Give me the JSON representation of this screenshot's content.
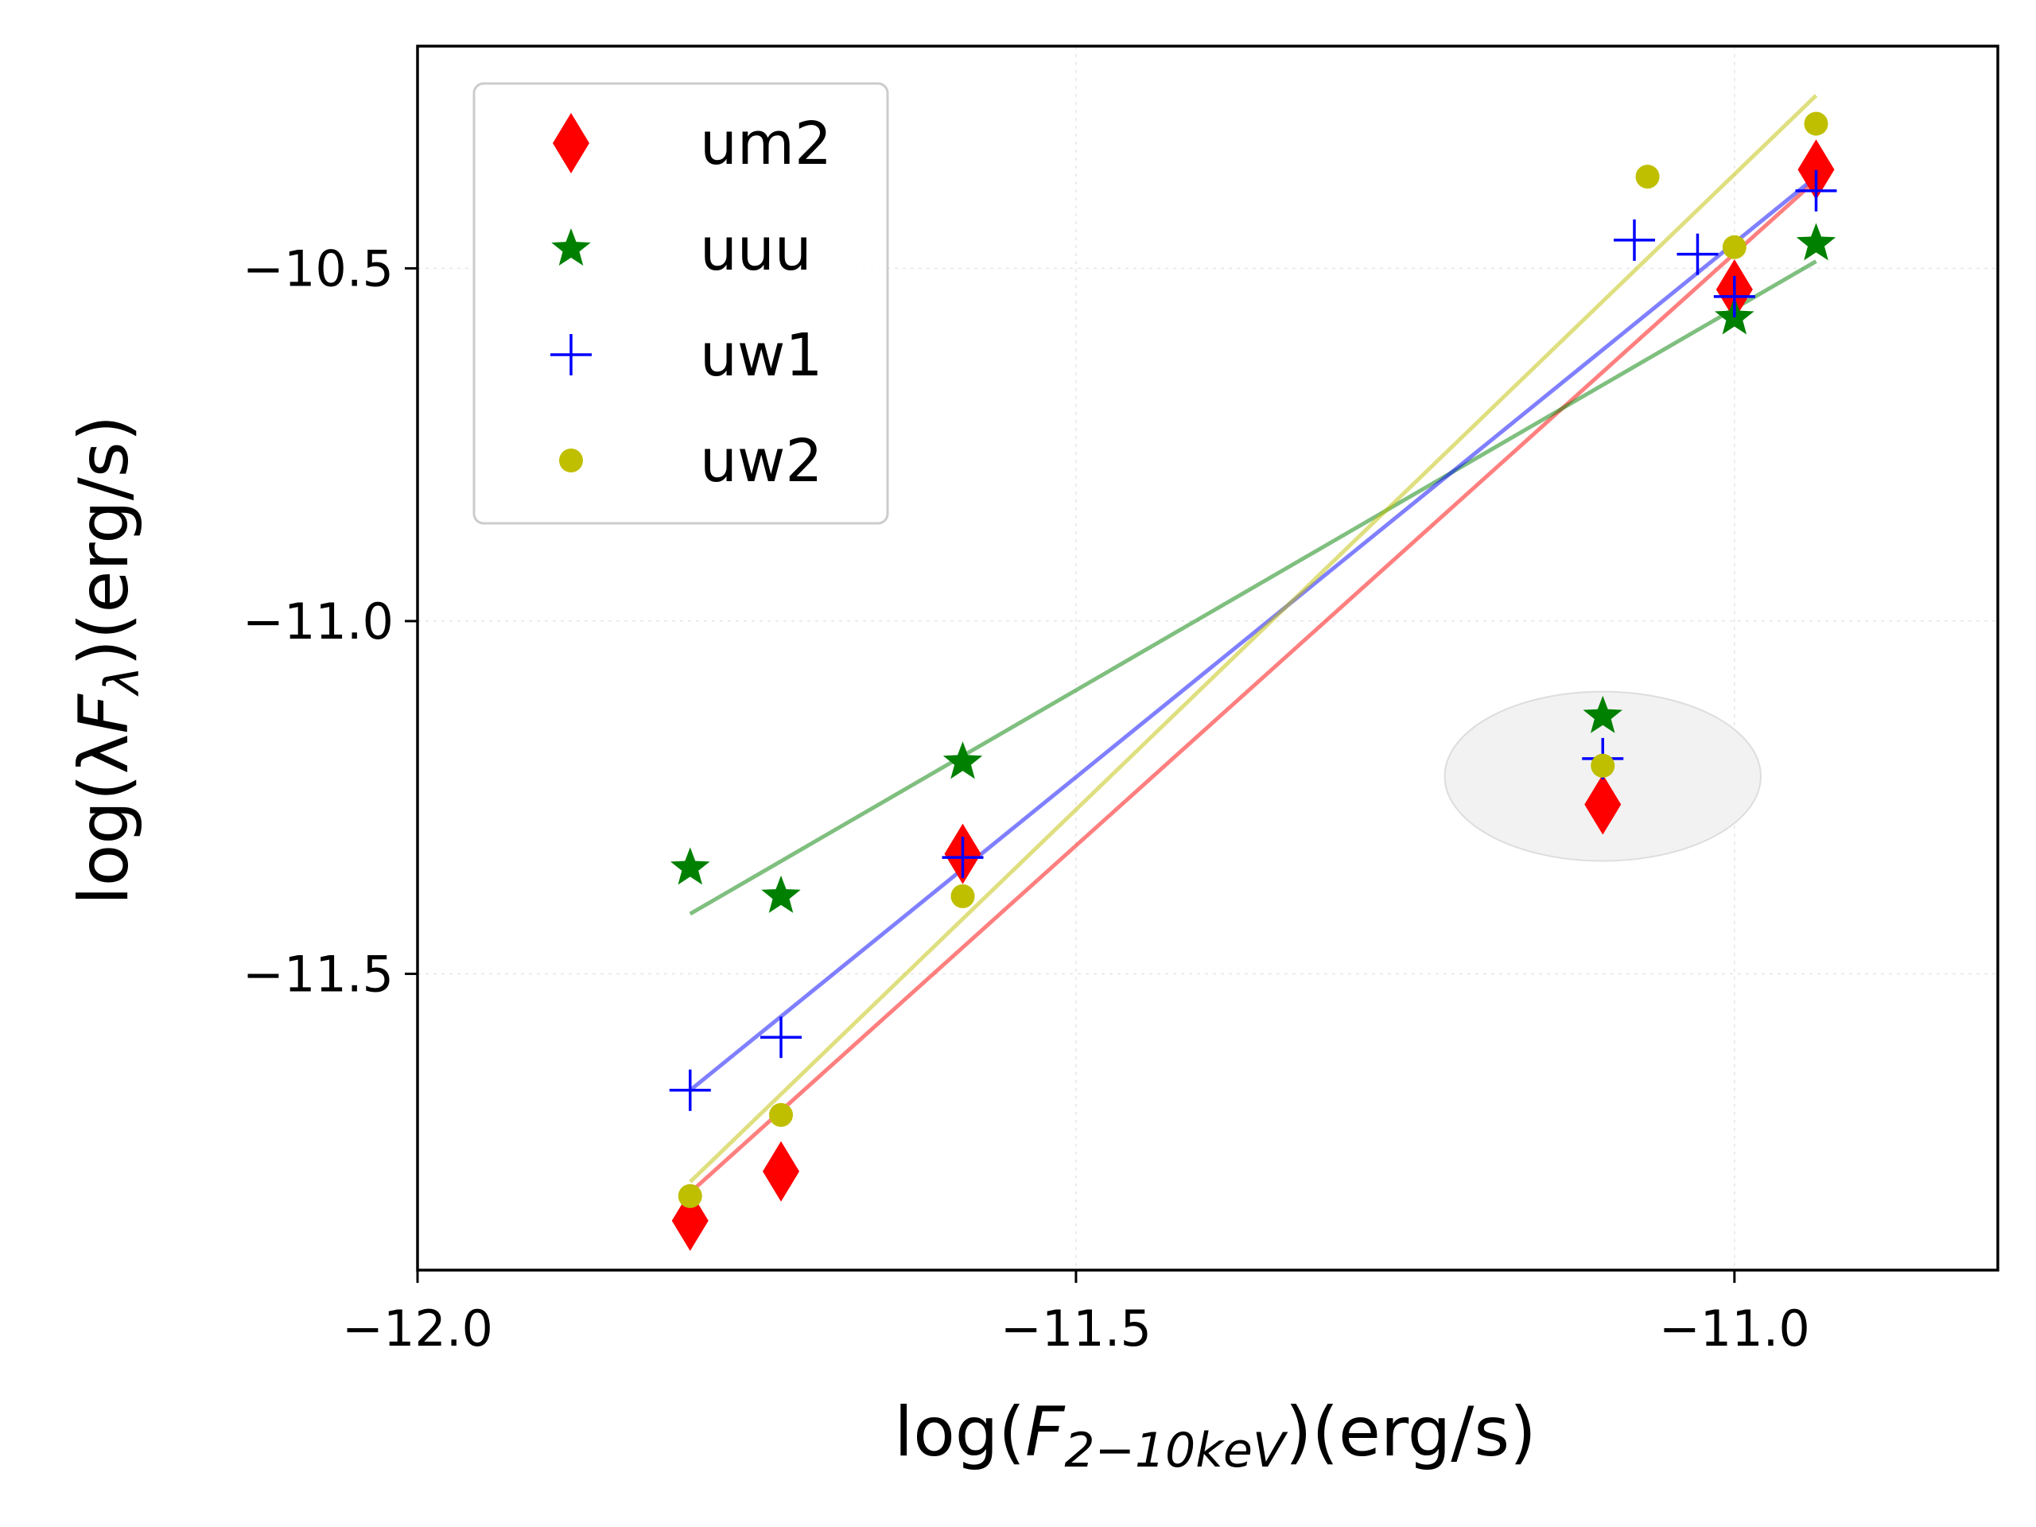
{
  "chart_data": {
    "type": "scatter",
    "xlabel": "log(F_{2−10keV})(erg/s)",
    "ylabel": "log(λF_λ)(erg/s)",
    "xlim": [
      -12.0,
      -10.8
    ],
    "ylim": [
      -11.92,
      -10.185
    ],
    "x_ticks": [
      -12.0,
      -11.5,
      -11.0
    ],
    "x_tick_labels": [
      "−12.0",
      "−11.5",
      "−11.0"
    ],
    "y_ticks": [
      -11.5,
      -11.0,
      -10.5
    ],
    "y_tick_labels": [
      "−11.5",
      "−11.0",
      "−10.5"
    ],
    "grid": true,
    "legend_position": "top-left",
    "highlight_ellipse": {
      "cx": -11.1,
      "cy": -11.22,
      "rx": 0.12,
      "ry": 0.12,
      "color": "#f2f2f2"
    },
    "series": [
      {
        "name": "um2",
        "color": "#ff0000",
        "marker": "diamond",
        "x": [
          -11.793,
          -11.724,
          -11.586,
          -11.1,
          -11.0,
          -10.938
        ],
        "y": [
          -11.85,
          -11.78,
          -11.33,
          -11.26,
          -10.53,
          -10.36
        ],
        "fit": {
          "x": [
            -11.793,
            -10.938
          ],
          "y": [
            -11.81,
            -10.375
          ]
        }
      },
      {
        "name": "uuu",
        "color": "#008000",
        "marker": "star",
        "x": [
          -11.793,
          -11.724,
          -11.586,
          -11.1,
          -11.0,
          -10.938
        ],
        "y": [
          -11.35,
          -11.39,
          -11.2,
          -11.135,
          -10.57,
          -10.465
        ],
        "fit": {
          "x": [
            -11.793,
            -10.938
          ],
          "y": [
            -11.415,
            -10.49
          ]
        }
      },
      {
        "name": "uw1",
        "color": "#0000ff",
        "marker": "plus",
        "x": [
          -11.793,
          -11.724,
          -11.586,
          -11.1,
          -11.076,
          -11.028,
          -11.0,
          -10.938
        ],
        "y": [
          -11.665,
          -11.59,
          -11.335,
          -11.195,
          -10.46,
          -10.48,
          -10.54,
          -10.39
        ],
        "fit": {
          "x": [
            -11.793,
            -10.938
          ],
          "y": [
            -11.665,
            -10.37
          ]
        }
      },
      {
        "name": "uw2",
        "color": "#bfbf00",
        "marker": "circle",
        "x": [
          -11.793,
          -11.724,
          -11.586,
          -11.1,
          -11.066,
          -11.0,
          -10.938
        ],
        "y": [
          -11.815,
          -11.7,
          -11.39,
          -11.205,
          -10.37,
          -10.47,
          -10.295
        ],
        "fit": {
          "x": [
            -11.793,
            -10.938
          ],
          "y": [
            -11.795,
            -10.255
          ]
        }
      }
    ]
  }
}
